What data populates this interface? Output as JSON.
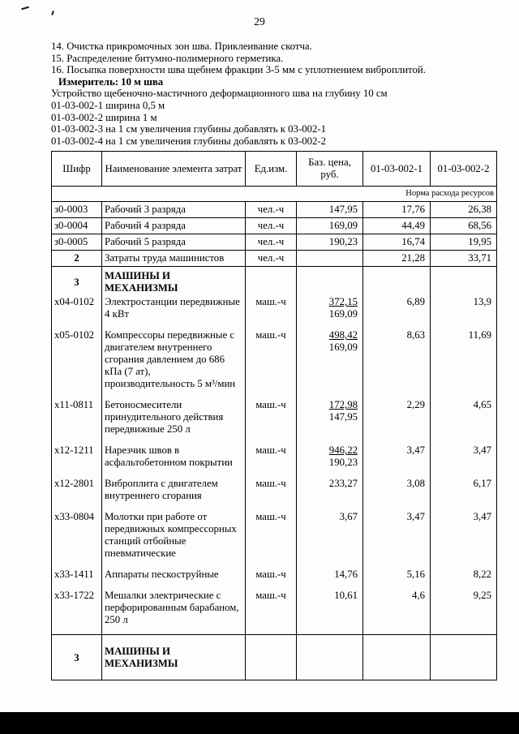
{
  "page": {
    "number": "29"
  },
  "intro": {
    "items": [
      "14. Очистка прикромочных зон шва. Приклеивание скотча.",
      "15. Распределение битумно-полимерного герметика.",
      "16. Посыпка поверхности шва щебнем фракции 3-5 мм с уплотнением виброплитой."
    ],
    "meter": "Измеритель: 10 м шва",
    "description": "Устройство щебеночно-мастичного деформационного шва на глубину 10 см",
    "variants": [
      "01-03-002-1 ширина 0,5 м",
      "01-03-002-2 ширина 1 м",
      "01-03-002-3 на 1 см увеличения глубины добавлять к 03-002-1",
      "01-03-002-4 на 1 см увеличения глубины добавлять к 03-002-2"
    ]
  },
  "table": {
    "headers": [
      "Шифр",
      "Наименование элемента затрат",
      "Ед.изм.",
      "Баз. цена, руб.",
      "01-03-002-1",
      "01-03-002-2"
    ],
    "note": "Норма расхода ресурсов",
    "rows": [
      {
        "kind": "labor",
        "code": "з0-0003",
        "name": "Рабочий 3 разряда",
        "unit": "чел.-ч",
        "price": "147,95",
        "norm1": "17,76",
        "norm2": "26,38"
      },
      {
        "kind": "labor",
        "code": "з0-0004",
        "name": "Рабочий 4 разряда",
        "unit": "чел.-ч",
        "price": "169,09",
        "norm1": "44,49",
        "norm2": "68,56"
      },
      {
        "kind": "labor",
        "code": "з0-0005",
        "name": "Рабочий 5 разряда",
        "unit": "чел.-ч",
        "price": "190,23",
        "norm1": "16,74",
        "norm2": "19,95"
      },
      {
        "kind": "total",
        "code": "2",
        "name": "Затраты труда машинистов",
        "unit": "чел.-ч",
        "price": "",
        "norm1": "21,28",
        "norm2": "33,71"
      },
      {
        "kind": "section",
        "code": "3",
        "name": "МАШИНЫ И МЕХАНИЗМЫ"
      },
      {
        "kind": "machine",
        "code": "х04-0102",
        "name": "Электростанции передвижные 4 кВт",
        "unit": "маш.-ч",
        "price_top": "372,15",
        "price_bottom": "169,09",
        "norm1": "6,89",
        "norm2": "13,9"
      },
      {
        "kind": "machine",
        "code": "х05-0102",
        "name": "Компрессоры передвижные с двигателем внутреннего сгорания давлением до 686 кПа (7 ат), производительность 5 м³/мин",
        "unit": "маш.-ч",
        "price_top": "498,42",
        "price_bottom": "169,09",
        "norm1": "8,63",
        "norm2": "11,69"
      },
      {
        "kind": "machine",
        "code": "х11-0811",
        "name": "Бетоносмесители принудительного действия передвижные 250 л",
        "unit": "маш.-ч",
        "price_top": "172,98",
        "price_bottom": "147,95",
        "norm1": "2,29",
        "norm2": "4,65"
      },
      {
        "kind": "machine",
        "code": "х12-1211",
        "name": "Нарезчик швов в асфальтобетонном покрытии",
        "unit": "маш.-ч",
        "price_top": "946,22",
        "price_bottom": "190,23",
        "norm1": "3,47",
        "norm2": "3,47"
      },
      {
        "kind": "machine",
        "code": "х12-2801",
        "name": "Виброплита с двигателем внутреннего сгорания",
        "unit": "маш.-ч",
        "price": "233,27",
        "norm1": "3,08",
        "norm2": "6,17"
      },
      {
        "kind": "machine",
        "code": "х33-0804",
        "name": "Молотки при работе от передвижных компрессорных станций отбойные пневматические",
        "unit": "маш.-ч",
        "price": "3,67",
        "norm1": "3,47",
        "norm2": "3,47"
      },
      {
        "kind": "machine",
        "code": "х33-1411",
        "name": "Аппараты пескоструйные",
        "unit": "маш.-ч",
        "price": "14,76",
        "norm1": "5,16",
        "norm2": "8,22"
      },
      {
        "kind": "machine",
        "code": "х33-1722",
        "name": "Мешалки электрические с перфорированным барабаном, 250 л",
        "unit": "маш.-ч",
        "price": "10,61",
        "norm1": "4,6",
        "norm2": "9,25"
      },
      {
        "kind": "section-end",
        "code": "3",
        "name": "МАШИНЫ И МЕХАНИЗМЫ"
      }
    ]
  }
}
